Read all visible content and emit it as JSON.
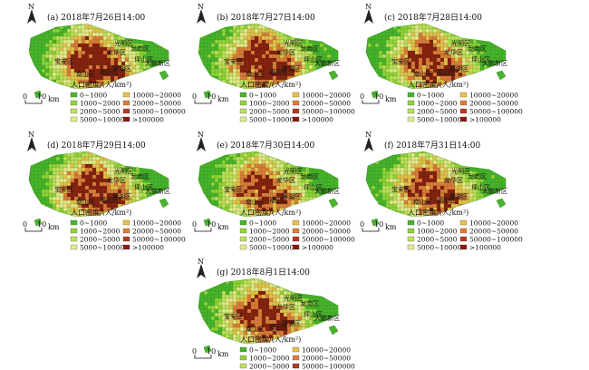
{
  "colors": {
    "c1": "#47b52b",
    "c2": "#8fd437",
    "c3": "#bfe05a",
    "c4": "#e6e88a",
    "c5": "#e8c04a",
    "c6": "#e07a3a",
    "c7": "#8a1a0e",
    "background": "#ffffff"
  },
  "panels": [
    {
      "title": "(a) 2018年7月26日14:00",
      "level": 0.45
    },
    {
      "title": "(b) 2018年7月27日14:00",
      "level": 0.46
    },
    {
      "title": "(c) 2018年7月28日14:00",
      "level": 0.38
    },
    {
      "title": "(d) 2018年7月29日14:00",
      "level": 0.44
    },
    {
      "title": "(e) 2018年7月30日14:00",
      "level": 0.35
    },
    {
      "title": "(f) 2018年7月31日14:00",
      "level": 0.36
    },
    {
      "title": "(g) 2018年8月1日14:00",
      "level": 0.4
    }
  ],
  "districts": [
    "光明区",
    "龙华区",
    "宝安区",
    "南山区",
    "福田区",
    "罗湖区",
    "龙岗区",
    "坪山区",
    "大鹏新区"
  ],
  "north_label": "N",
  "scale": {
    "zero": "0",
    "ten": "10",
    "unit": "km"
  },
  "legend": {
    "title": "人口密度/(人/km²)",
    "items": [
      {
        "label": "0~1000",
        "color": "#47b52b"
      },
      {
        "label": "1000~2000",
        "color": "#8fd437"
      },
      {
        "label": "2000~5000",
        "color": "#bfe05a"
      },
      {
        "label": "5000~10000",
        "color": "#e6e88a"
      },
      {
        "label": "10000~20000",
        "color": "#e8c04a"
      },
      {
        "label": "20000~50000",
        "color": "#e07a3a"
      },
      {
        "label": "50000~100000",
        "color": "#b23a1e"
      },
      {
        "label": ">100000",
        "color": "#8a1a0e"
      }
    ]
  }
}
